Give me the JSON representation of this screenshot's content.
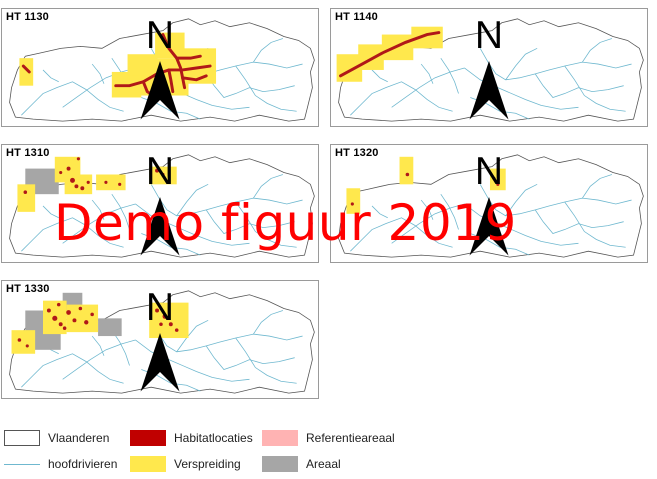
{
  "panels": [
    {
      "id": "1130",
      "title": "HT 1130"
    },
    {
      "id": "1140",
      "title": "HT 1140"
    },
    {
      "id": "1310",
      "title": "HT 1310"
    },
    {
      "id": "1320",
      "title": "HT 1320"
    },
    {
      "id": "1330",
      "title": "HT 1330"
    }
  ],
  "north_label": "N",
  "watermark": "Demo figuur 2019",
  "legend": {
    "vlaanderen": "Vlaanderen",
    "hoofdrivieren": "hoofdrivieren",
    "habitatlocaties": "Habitatlocaties",
    "verspreiding": "Verspreiding",
    "referentieareaal": "Referentieareaal",
    "areaal": "Areaal"
  },
  "colors": {
    "habitat": "#c00000",
    "verspreiding": "#ffe84d",
    "referentieareaal": "#ffb3b3",
    "areaal": "#a6a6a6",
    "rivers": "#6fb8cf",
    "outline": "#555555"
  }
}
